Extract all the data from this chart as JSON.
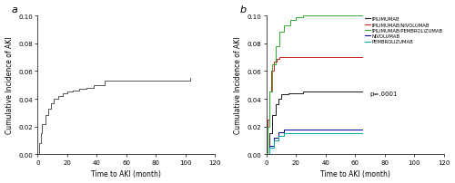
{
  "panel_a": {
    "label": "a",
    "xlabel": "Time to AKI (month)",
    "ylabel": "Cumulative Incidence of AKI",
    "ylim": [
      0,
      0.1
    ],
    "xlim": [
      0,
      120
    ],
    "yticks": [
      0.0,
      0.02,
      0.04,
      0.06,
      0.08,
      0.1
    ],
    "xticks": [
      0,
      20,
      40,
      60,
      80,
      100,
      120
    ],
    "curve_color": "#555555",
    "step_x": [
      0,
      1,
      2,
      3,
      5,
      7,
      9,
      11,
      14,
      17,
      20,
      24,
      28,
      33,
      38,
      45,
      103
    ],
    "step_y": [
      0,
      0.008,
      0.015,
      0.022,
      0.028,
      0.033,
      0.037,
      0.04,
      0.042,
      0.044,
      0.045,
      0.046,
      0.047,
      0.048,
      0.05,
      0.053,
      0.055
    ]
  },
  "panel_b": {
    "label": "b",
    "xlabel": "Time to AKI (month)",
    "ylabel": "Cumulative Incidence of AKI",
    "ylim": [
      0,
      0.1
    ],
    "xlim": [
      0,
      120
    ],
    "yticks": [
      0.0,
      0.02,
      0.04,
      0.06,
      0.08,
      0.1
    ],
    "xticks": [
      0,
      20,
      40,
      60,
      80,
      100,
      120
    ],
    "pvalue": "p=.0001",
    "legend_entries": [
      "IPILIMUMAB",
      "IPILIMUMAB/NIVOLUMAB",
      "IPILIMUMAB/PEMBROLIZUMAB",
      "NIVOLUMAB",
      "PEMBROLIZUMAB"
    ],
    "legend_colors": [
      "#1a1a1a",
      "#cc2222",
      "#33aa33",
      "#000099",
      "#00aaaa"
    ],
    "curves": {
      "IPILIMUMAB": {
        "color": "#1a1a1a",
        "x": [
          0,
          2,
          4,
          6,
          8,
          10,
          15,
          25,
          65
        ],
        "y": [
          0,
          0.015,
          0.028,
          0.036,
          0.04,
          0.043,
          0.044,
          0.045,
          0.045
        ]
      },
      "IPILIMUMAB/NIVOLUMAB": {
        "color": "#cc2222",
        "x": [
          0,
          1,
          2,
          3,
          5,
          7,
          9,
          65
        ],
        "y": [
          0,
          0.025,
          0.045,
          0.06,
          0.067,
          0.069,
          0.07,
          0.07
        ]
      },
      "IPILIMUMAB/PEMBROLIZUMAB": {
        "color": "#33aa33",
        "x": [
          0,
          1,
          2,
          4,
          6,
          9,
          12,
          16,
          20,
          25,
          38,
          65
        ],
        "y": [
          0,
          0.02,
          0.045,
          0.065,
          0.078,
          0.088,
          0.093,
          0.097,
          0.099,
          0.1,
          0.1,
          0.1
        ]
      },
      "NIVOLUMAB": {
        "color": "#000099",
        "x": [
          0,
          2,
          5,
          8,
          12,
          65
        ],
        "y": [
          0,
          0.006,
          0.012,
          0.016,
          0.018,
          0.018
        ]
      },
      "PEMBROLIZUMAB": {
        "color": "#00aaaa",
        "x": [
          0,
          2,
          5,
          8,
          12,
          65
        ],
        "y": [
          0,
          0.005,
          0.01,
          0.013,
          0.015,
          0.015
        ]
      }
    }
  }
}
